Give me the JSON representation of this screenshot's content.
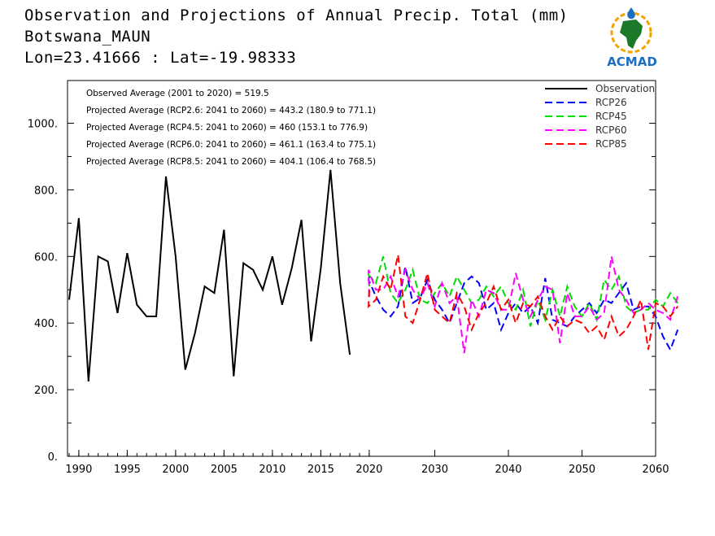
{
  "header": {
    "title": "Observation and Projections of Annual Precip. Total (mm)",
    "station": "Botswana_MAUN",
    "coords": "Lon=23.41666 : Lat=-19.98333"
  },
  "logo": {
    "text": "ACMAD",
    "icon": "africa-globe-logo"
  },
  "colors": {
    "Observation": "#000000",
    "RCP26": "#0000ff",
    "RCP45": "#00dd00",
    "RCP60": "#ff00ff",
    "RCP85": "#ff0000"
  },
  "annotations": [
    "Observed Average (2001 to 2020) = 519.5",
    "Projected Average (RCP2.6: 2041 to 2060) = 443.2 (180.9 to 771.1)",
    "Projected Average (RCP4.5: 2041 to 2060) = 460 (153.1 to 776.9)",
    "Projected Average (RCP6.0: 2041 to 2060) = 461.1 (163.4 to 775.1)",
    "Projected Average (RCP8.5: 2041 to 2060) = 404.1 (106.4 to 768.5)"
  ],
  "chart_data": {
    "type": "line",
    "xlim": [
      1989,
      2060
    ],
    "ylim": [
      0,
      1100
    ],
    "x_ticks": [
      "1990",
      "1995",
      "2000",
      "2005",
      "2010",
      "2015",
      "2020",
      "2030",
      "2040",
      "2050",
      "2060"
    ],
    "y_ticks": [
      "0.",
      "200.",
      "400.",
      "600.",
      "800.",
      "1000."
    ],
    "legend_position": "top-right",
    "series": [
      {
        "name": "Observation",
        "style": "solid",
        "x_start": 1989,
        "values": [
          470,
          715,
          225,
          600,
          585,
          430,
          610,
          455,
          420,
          420,
          840,
          600,
          260,
          370,
          510,
          490,
          680,
          240,
          580,
          560,
          500,
          600,
          455,
          565,
          710,
          345,
          565,
          860,
          520,
          305
        ]
      },
      {
        "name": "RCP26",
        "style": "dashed",
        "x_start": 2020,
        "values": [
          540,
          530,
          480,
          440,
          420,
          450,
          570,
          460,
          475,
          530,
          470,
          440,
          400,
          460,
          520,
          540,
          520,
          440,
          460,
          380,
          430,
          460,
          430,
          450,
          400,
          535,
          410,
          400,
          390,
          420,
          440,
          460,
          430,
          470,
          460,
          490,
          520,
          440,
          450,
          450,
          420,
          360,
          320,
          380
        ]
      },
      {
        "name": "RCP45",
        "style": "dashed",
        "x_start": 2020,
        "values": [
          510,
          545,
          520,
          600,
          490,
          460,
          500,
          560,
          470,
          460,
          490,
          520,
          480,
          540,
          500,
          460,
          470,
          510,
          480,
          510,
          460,
          440,
          500,
          390,
          470,
          410,
          500,
          420,
          510,
          450,
          420,
          460,
          410,
          530,
          500,
          540,
          450,
          430,
          440,
          440,
          470,
          450,
          490,
          460
        ]
      },
      {
        "name": "RCP60",
        "style": "dashed",
        "x_start": 2020,
        "values": [
          480,
          560,
          500,
          500,
          540,
          480,
          560,
          500,
          470,
          520,
          450,
          520,
          460,
          480,
          310,
          470,
          420,
          500,
          490,
          440,
          440,
          550,
          470,
          420,
          470,
          510,
          500,
          340,
          490,
          420,
          420,
          450,
          410,
          430,
          600,
          500,
          470,
          430,
          440,
          460,
          440,
          430,
          410,
          480
        ]
      },
      {
        "name": "RCP85",
        "style": "dashed",
        "x_start": 2020,
        "values": [
          500,
          450,
          470,
          540,
          500,
          605,
          420,
          400,
          470,
          550,
          440,
          420,
          400,
          490,
          450,
          380,
          430,
          460,
          510,
          440,
          470,
          400,
          460,
          450,
          480,
          420,
          380,
          420,
          390,
          410,
          400,
          370,
          390,
          350,
          420,
          360,
          380,
          420,
          470,
          320,
          460,
          450,
          420,
          450
        ]
      }
    ]
  }
}
